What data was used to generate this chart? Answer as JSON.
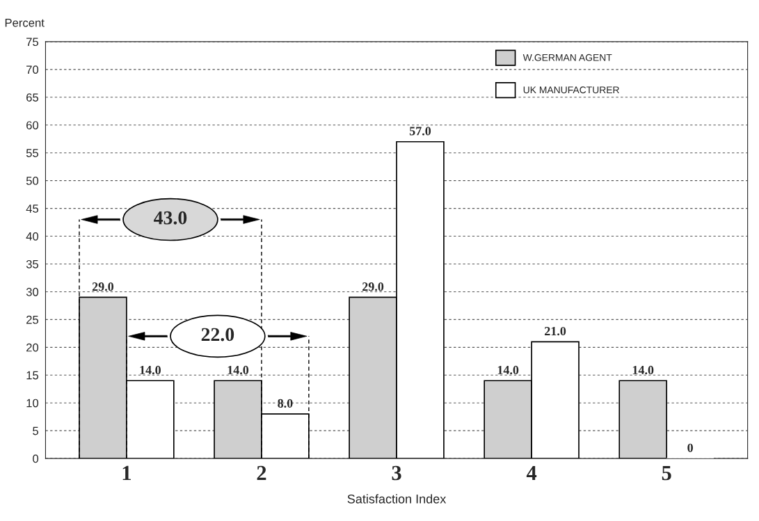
{
  "chart_data": {
    "type": "bar",
    "ylabel": "Percent",
    "xlabel": "Satisfaction Index",
    "categories": [
      "1",
      "2",
      "3",
      "4",
      "5"
    ],
    "series": [
      {
        "name": "W.GERMAN AGENT",
        "color": "#cfcfcf",
        "values": [
          29.0,
          14.0,
          29.0,
          14.0,
          14.0
        ],
        "value_labels": [
          "29.0",
          "14.0",
          "29.0",
          "14.0",
          "14.0"
        ]
      },
      {
        "name": "UK MANUFACTURER",
        "color": "#ffffff",
        "values": [
          14.0,
          8.0,
          57.0,
          21.0,
          0
        ],
        "value_labels": [
          "14.0",
          "8.0",
          "57.0",
          "21.0",
          "0"
        ]
      }
    ],
    "ylim": [
      0,
      75
    ],
    "yticks": [
      0,
      5,
      10,
      15,
      20,
      25,
      30,
      35,
      40,
      45,
      50,
      55,
      60,
      65,
      70,
      75
    ],
    "grid": "y",
    "legend": "top right",
    "annotations": [
      "43.0",
      "22.0"
    ]
  }
}
